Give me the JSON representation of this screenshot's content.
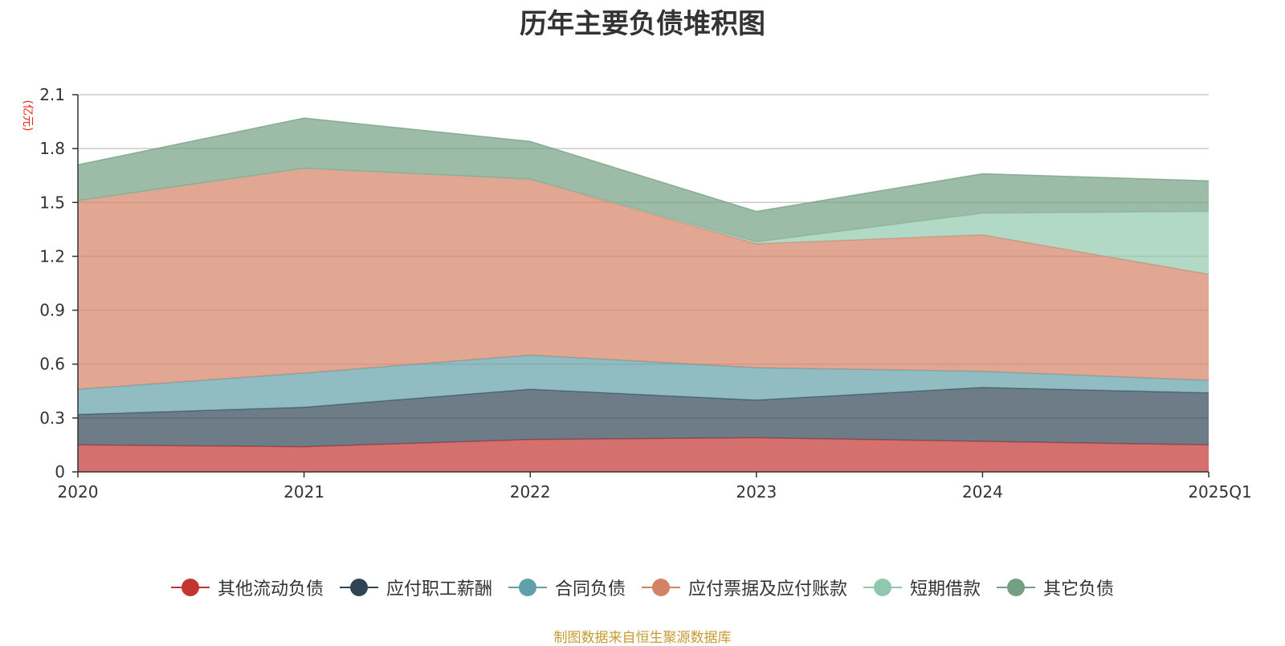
{
  "colors": {
    "title": "#333333",
    "axis": "#333333",
    "grid": "#cccccc",
    "unit": "#e8281e",
    "source": "#c69b32"
  },
  "chart_data": {
    "type": "area",
    "stacked": true,
    "title": "历年主要负债堆积图",
    "unit_label": "(亿元)",
    "source_note": "制图数据来自恒生聚源数据库",
    "categories": [
      "2020",
      "2021",
      "2022",
      "2023",
      "2024",
      "2025Q1"
    ],
    "ylim": [
      0,
      2.1
    ],
    "yticks": [
      "0",
      "0.3",
      "0.6",
      "0.9",
      "1.2",
      "1.5",
      "1.8",
      "2.1"
    ],
    "grid": true,
    "legend_position": "bottom",
    "series": [
      {
        "name": "其他流动负债",
        "color": "#c23531",
        "values": [
          0.15,
          0.14,
          0.18,
          0.19,
          0.17,
          0.15
        ]
      },
      {
        "name": "应付职工薪酬",
        "color": "#2f4554",
        "values": [
          0.17,
          0.22,
          0.28,
          0.21,
          0.3,
          0.29
        ]
      },
      {
        "name": "合同负债",
        "color": "#61a0a8",
        "values": [
          0.14,
          0.19,
          0.19,
          0.18,
          0.09,
          0.07
        ]
      },
      {
        "name": "应付票据及应付账款",
        "color": "#d48265",
        "values": [
          1.05,
          1.14,
          0.98,
          0.69,
          0.76,
          0.59
        ]
      },
      {
        "name": "短期借款",
        "color": "#91c7ae",
        "values": [
          0.0,
          0.0,
          0.0,
          0.01,
          0.12,
          0.35
        ]
      },
      {
        "name": "其它负债",
        "color": "#749f83",
        "values": [
          0.2,
          0.28,
          0.21,
          0.17,
          0.22,
          0.17
        ]
      }
    ]
  }
}
